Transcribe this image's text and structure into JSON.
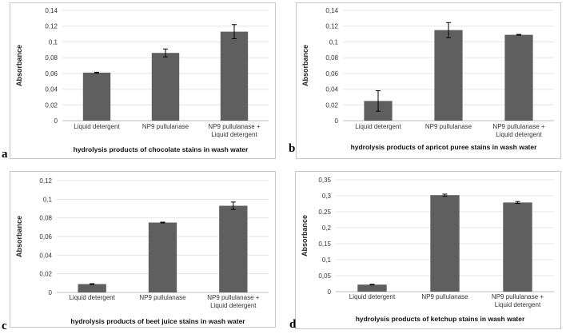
{
  "panel_letters": [
    "a",
    "b",
    "c",
    "d"
  ],
  "chart_data": [
    {
      "type": "bar",
      "panel": "a",
      "categories": [
        "Liquid detergent",
        "NP9 pullulanase",
        "NP9 pullulanase + Liquid detergent"
      ],
      "category_lines": [
        [
          "Liquid detergent"
        ],
        [
          "NP9 pullulanase"
        ],
        [
          "NP9 pullulanase +",
          "Liquid detergent"
        ]
      ],
      "values": [
        0.061,
        0.086,
        0.113
      ],
      "errors": [
        0.0005,
        0.005,
        0.009
      ],
      "ylabel": "Absorbance",
      "xlabel": "hydrolysis products of chocolate stains in wash water",
      "ylim": [
        0,
        0.14
      ],
      "yticks": [
        "0",
        "0,02",
        "0,04",
        "0,06",
        "0,08",
        "0,1",
        "0,12",
        "0,14"
      ],
      "bar_color": "#5f5f5f"
    },
    {
      "type": "bar",
      "panel": "b",
      "categories": [
        "Liquid detergent",
        "NP9 pullulanase",
        "NP9 pullulanase + Liquid detergent"
      ],
      "category_lines": [
        [
          "Liquid detergent"
        ],
        [
          "NP9 pullulanase"
        ],
        [
          "NP9 pullulanase +",
          "Liquid detergent"
        ]
      ],
      "values": [
        0.025,
        0.115,
        0.109
      ],
      "errors": [
        0.013,
        0.0095,
        0.0005
      ],
      "ylabel": "Absorbance",
      "xlabel": "hydrolysis products of apricot puree stains in wash water",
      "ylim": [
        0,
        0.14
      ],
      "yticks": [
        "0",
        "0,02",
        "0,04",
        "0,06",
        "0,08",
        "0,1",
        "0,12",
        "0,14"
      ],
      "bar_color": "#5f5f5f"
    },
    {
      "type": "bar",
      "panel": "c",
      "categories": [
        "Liquid detergent",
        "NP9 pullulanase",
        "NP9 pullulanase + Liquid detergent"
      ],
      "category_lines": [
        [
          "Liquid detergent"
        ],
        [
          "NP9 pullulanase"
        ],
        [
          "NP9 pullulanase +",
          "Liquid detergent"
        ]
      ],
      "values": [
        0.009,
        0.075,
        0.093
      ],
      "errors": [
        0.0004,
        0.0004,
        0.004
      ],
      "ylabel": "Absorbance",
      "xlabel": "hydrolysis products of beet juice stains in wash water",
      "ylim": [
        0,
        0.12
      ],
      "yticks": [
        "0",
        "0,02",
        "0,04",
        "0,06",
        "0,08",
        "0,1",
        "0,12"
      ],
      "bar_color": "#5f5f5f"
    },
    {
      "type": "bar",
      "panel": "d",
      "categories": [
        "Liquid detergent",
        "NP9 pullulanase",
        "NP9 pullulanase + Liquid detergent"
      ],
      "category_lines": [
        [
          "Liquid detergent"
        ],
        [
          "NP9 pullulanase"
        ],
        [
          "NP9 pullulanase +",
          "Liquid detergent"
        ]
      ],
      "values": [
        0.022,
        0.302,
        0.279
      ],
      "errors": [
        0.001,
        0.003,
        0.003
      ],
      "ylabel": "Absorbance",
      "xlabel": "hydrolysis products of ketchup stains in wash water",
      "ylim": [
        0,
        0.35
      ],
      "yticks": [
        "0",
        "0,05",
        "0,1",
        "0,15",
        "0,2",
        "0,25",
        "0,3",
        "0,35"
      ],
      "bar_color": "#5f5f5f"
    }
  ]
}
